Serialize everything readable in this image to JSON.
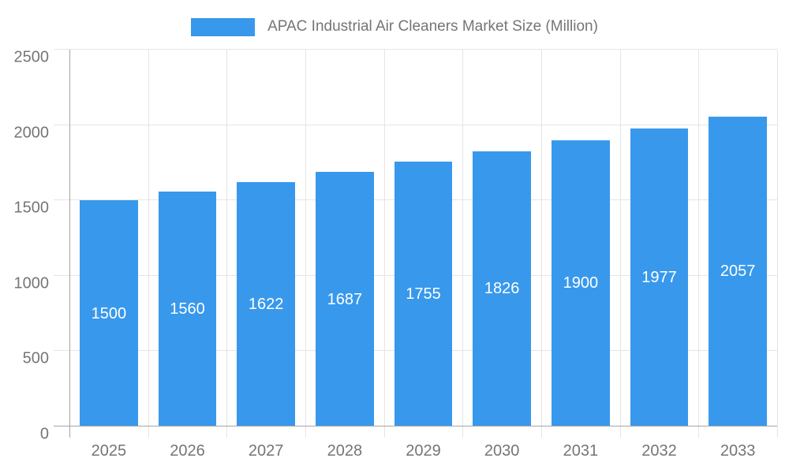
{
  "legend": {
    "label": "APAC Industrial Air Cleaners Market Size (Million)"
  },
  "chart_data": {
    "type": "bar",
    "title": "APAC Industrial Air Cleaners Market Size (Million)",
    "xlabel": "",
    "ylabel": "",
    "categories": [
      "2025",
      "2026",
      "2027",
      "2028",
      "2029",
      "2030",
      "2031",
      "2032",
      "2033"
    ],
    "values": [
      1500,
      1560,
      1622,
      1687,
      1755,
      1826,
      1900,
      1977,
      2057
    ],
    "ylim": [
      0,
      2500
    ],
    "ytick_interval": 500,
    "yticks": [
      "0",
      "500",
      "1000",
      "1500",
      "2000",
      "2500"
    ],
    "grid": true,
    "legend_position": "top",
    "colors": {
      "bar": "#3898ec",
      "bar_value_label": "#ffffff",
      "axis_text": "#757575",
      "gridline": "#e5e5e5",
      "axis_line": "#a6a6a6"
    }
  }
}
